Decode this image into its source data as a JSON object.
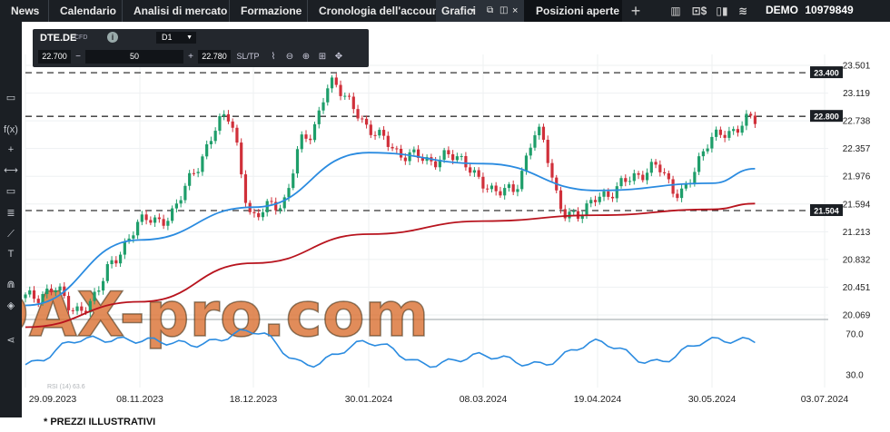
{
  "topbar": {
    "tabs": [
      {
        "label": "News"
      },
      {
        "label": "Calendario"
      },
      {
        "label": "Analisi di mercato"
      },
      {
        "label": "Formazione"
      },
      {
        "label": "Cronologia dell'account"
      },
      {
        "label": "Grafici"
      },
      {
        "label": "Posizioni aperte"
      }
    ],
    "account_mode": "DEMO",
    "account_number": "10979849"
  },
  "instrument_panel": {
    "symbol": "DTE.DE",
    "type": "CFD",
    "timeframe": "D1",
    "bid": "22.700",
    "quantity": "50",
    "ask": "22.780",
    "sltp_label": "SL/TP"
  },
  "watermark": "DAX-pro.com",
  "disclaimer": "* PREZZI ILLUSTRATIVI",
  "colors": {
    "bull": "#1e9e6a",
    "bear": "#d0303a",
    "ma_fast": "#2a8be0",
    "ma_slow": "#b8141e",
    "rsi": "#2a8be0",
    "background": "#ffffff",
    "chrome": "#1b1f24"
  },
  "chart_data": {
    "type": "line",
    "price_axis_ticks": [
      "23.501",
      "23.119",
      "22.738",
      "22.357",
      "21.976",
      "21.594",
      "21.213",
      "20.832",
      "20.451",
      "20.069"
    ],
    "price_ylim": [
      20.069,
      23.501
    ],
    "rsi_axis_ticks": [
      "70.0",
      "30.0"
    ],
    "rsi_ylim": [
      30,
      70
    ],
    "x_tick_labels": [
      "29.09.2023",
      "08.11.2023",
      "18.12.2023",
      "30.01.2024",
      "08.03.2024",
      "19.04.2024",
      "30.05.2024",
      "03.07.2024"
    ],
    "horizontal_levels": [
      {
        "label": "23.400",
        "value": 23.4
      },
      {
        "label": "22.800",
        "value": 22.8
      },
      {
        "label": "21.504",
        "value": 21.504
      }
    ],
    "rsi_label": "RSI (14) 63.6",
    "series": [
      {
        "x": [
          "2023-09-29",
          "2023-10-09",
          "2023-10-19",
          "2023-10-29",
          "2023-11-08",
          "2023-11-18",
          "2023-11-28",
          "2023-12-08",
          "2023-12-18",
          "2023-12-28",
          "2024-01-07",
          "2024-01-17",
          "2024-01-30",
          "2024-02-09",
          "2024-02-19",
          "2024-02-29",
          "2024-03-08",
          "2024-03-18",
          "2024-03-28",
          "2024-04-08",
          "2024-04-19",
          "2024-04-29",
          "2024-05-09",
          "2024-05-19",
          "2024-05-30",
          "2024-06-12"
        ],
        "close": [
          20.3,
          20.4,
          20.1,
          20.75,
          21.35,
          21.4,
          22.1,
          22.85,
          21.45,
          21.6,
          22.55,
          23.25,
          22.65,
          22.3,
          22.2,
          22.25,
          21.85,
          21.75,
          22.55,
          21.4,
          21.65,
          21.9,
          22.1,
          21.75,
          22.5,
          22.75
        ]
      },
      {
        "name": "",
        "x": [
          "2023-09-29",
          "2023-11-08",
          "2023-12-18",
          "2024-01-30",
          "2024-03-08",
          "2024-04-19",
          "2024-05-30",
          "2024-06-12"
        ],
        "values": [
          20.2,
          21.1,
          21.55,
          22.3,
          22.15,
          21.78,
          21.88,
          22.08
        ]
      },
      {
        "name": "",
        "x": [
          "2023-09-29",
          "2023-11-08",
          "2023-12-18",
          "2024-01-30",
          "2024-03-08",
          "2024-04-19",
          "2024-05-30",
          "2024-06-12"
        ],
        "values": [
          19.9,
          20.25,
          20.78,
          21.18,
          21.36,
          21.44,
          21.52,
          21.6
        ]
      },
      {
        "name": "RSI (14)",
        "x": [
          "2023-09-29",
          "2023-10-19",
          "2023-11-08",
          "2023-11-28",
          "2023-12-18",
          "2024-01-07",
          "2024-01-30",
          "2024-02-19",
          "2024-03-08",
          "2024-03-28",
          "2024-04-19",
          "2024-05-09",
          "2024-05-30",
          "2024-06-12"
        ],
        "values": [
          40,
          65,
          64,
          60,
          73,
          40,
          62,
          40,
          49,
          40,
          62,
          42,
          64,
          63.6
        ]
      }
    ]
  }
}
